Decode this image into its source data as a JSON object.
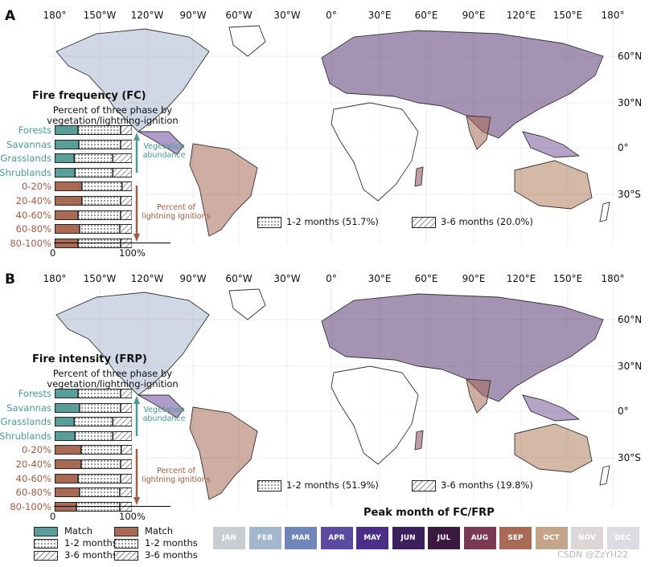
{
  "colors": {
    "teal": "#5a9e9a",
    "brown": "#a86a55",
    "teal_text": "#4a9a96",
    "brown_text": "#a55a44",
    "land": "#ffffff",
    "coast": "#333333"
  },
  "longitude_labels": [
    "180°",
    "150°W",
    "120°W",
    "90°W",
    "60°W",
    "30°W",
    "0°",
    "30°E",
    "60°E",
    "90°E",
    "120°E",
    "150°E",
    "180°"
  ],
  "latitude_labels": [
    "60°N",
    "30°N",
    "0°",
    "30°S"
  ],
  "panels": [
    {
      "label": "A",
      "inset_title": "Fire frequency (FC)",
      "inset_subtitle": "Percent of three phase by vegetation/lightning-ignition",
      "vegetation_note": "Vegetation abundance",
      "lightning_note": "Percent of lightning ignitions",
      "axis_ticks": [
        "0",
        "100%"
      ],
      "rows": [
        {
          "label": "Forests",
          "group": "veg",
          "match": 0.3,
          "one_two": 0.55,
          "three_six": 0.15
        },
        {
          "label": "Savannas",
          "group": "veg",
          "match": 0.31,
          "one_two": 0.54,
          "three_six": 0.15
        },
        {
          "label": "Grasslands",
          "group": "veg",
          "match": 0.25,
          "one_two": 0.5,
          "three_six": 0.25
        },
        {
          "label": "Shrublands",
          "group": "veg",
          "match": 0.26,
          "one_two": 0.49,
          "three_six": 0.25
        },
        {
          "label": "0-20%",
          "group": "light",
          "match": 0.35,
          "one_two": 0.52,
          "three_six": 0.13
        },
        {
          "label": "20-40%",
          "group": "light",
          "match": 0.35,
          "one_two": 0.5,
          "three_six": 0.15
        },
        {
          "label": "40-60%",
          "group": "light",
          "match": 0.3,
          "one_two": 0.55,
          "three_six": 0.15
        },
        {
          "label": "60-80%",
          "group": "light",
          "match": 0.32,
          "one_two": 0.52,
          "three_six": 0.16
        },
        {
          "label": "80-100%",
          "group": "light",
          "match": 0.3,
          "one_two": 0.55,
          "three_six": 0.15
        }
      ],
      "legend_one_two": "1-2 months (51.7%)",
      "legend_three_six": "3-6 months (20.0%)"
    },
    {
      "label": "B",
      "inset_title": "Fire intensity (FRP)",
      "inset_subtitle": "Percent of three phase by vegetation/lightning-ignition",
      "vegetation_note": "Vegetation abundance",
      "lightning_note": "Percent of lightning ignitions",
      "axis_ticks": [
        "0",
        "100%"
      ],
      "rows": [
        {
          "label": "Forests",
          "group": "veg",
          "match": 0.3,
          "one_two": 0.55,
          "three_six": 0.15
        },
        {
          "label": "Savannas",
          "group": "veg",
          "match": 0.32,
          "one_two": 0.53,
          "three_six": 0.15
        },
        {
          "label": "Grasslands",
          "group": "veg",
          "match": 0.25,
          "one_two": 0.5,
          "three_six": 0.25
        },
        {
          "label": "Shrublands",
          "group": "veg",
          "match": 0.26,
          "one_two": 0.49,
          "three_six": 0.25
        },
        {
          "label": "0-20%",
          "group": "light",
          "match": 0.34,
          "one_two": 0.52,
          "three_six": 0.14
        },
        {
          "label": "20-40%",
          "group": "light",
          "match": 0.34,
          "one_two": 0.51,
          "three_six": 0.15
        },
        {
          "label": "40-60%",
          "group": "light",
          "match": 0.3,
          "one_two": 0.55,
          "three_six": 0.15
        },
        {
          "label": "60-80%",
          "group": "light",
          "match": 0.32,
          "one_two": 0.52,
          "three_six": 0.16
        },
        {
          "label": "80-100%",
          "group": "light",
          "match": 0.28,
          "one_two": 0.56,
          "three_six": 0.16
        }
      ],
      "legend_one_two": "1-2 months (51.9%)",
      "legend_three_six": "3-6 months (19.8%)"
    }
  ],
  "month_legend": {
    "title": "Peak month of FC/FRP",
    "months": [
      {
        "label": "JAN",
        "color": "#c9ccd1"
      },
      {
        "label": "FEB",
        "color": "#a3b7cc"
      },
      {
        "label": "MAR",
        "color": "#7186b8"
      },
      {
        "label": "APR",
        "color": "#5a4ba0"
      },
      {
        "label": "MAY",
        "color": "#4b2f86"
      },
      {
        "label": "JUN",
        "color": "#3e1f5e"
      },
      {
        "label": "JUL",
        "color": "#3a1a3e"
      },
      {
        "label": "AUG",
        "color": "#7a3a52"
      },
      {
        "label": "SEP",
        "color": "#a86a55"
      },
      {
        "label": "OCT",
        "color": "#c4a48a"
      },
      {
        "label": "NOV",
        "color": "#dcd6d6"
      },
      {
        "label": "DEC",
        "color": "#dedce3"
      }
    ]
  },
  "bottom_legend": {
    "left": [
      "Match",
      "1-2 months",
      "3-6 months"
    ],
    "right": [
      "Match",
      "1-2 months",
      "3-6 months"
    ]
  },
  "watermark": "CSDN @ZzYH22"
}
